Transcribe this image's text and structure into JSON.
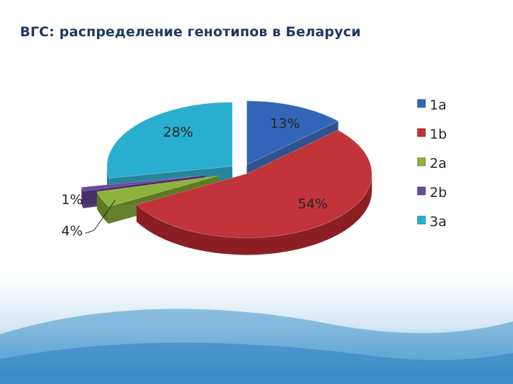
{
  "slide": {
    "title": "ВГС: распределение генотипов в Беларуси"
  },
  "chart_data": {
    "type": "pie",
    "title": "",
    "style": "3d exploded",
    "legend_position": "right",
    "categories": [
      "1a",
      "1b",
      "2a",
      "2b",
      "3a"
    ],
    "values": [
      13,
      54,
      4,
      1,
      28
    ],
    "labels": [
      "13%",
      "54%",
      "4%",
      "1%",
      "28%"
    ],
    "colors": [
      "#3366b8",
      "#c0343a",
      "#8db33c",
      "#6a4a9a",
      "#2aaed0"
    ],
    "side_colors": [
      "#234a8a",
      "#8c1f24",
      "#5d7a22",
      "#482f6d",
      "#1a7e98"
    ]
  }
}
